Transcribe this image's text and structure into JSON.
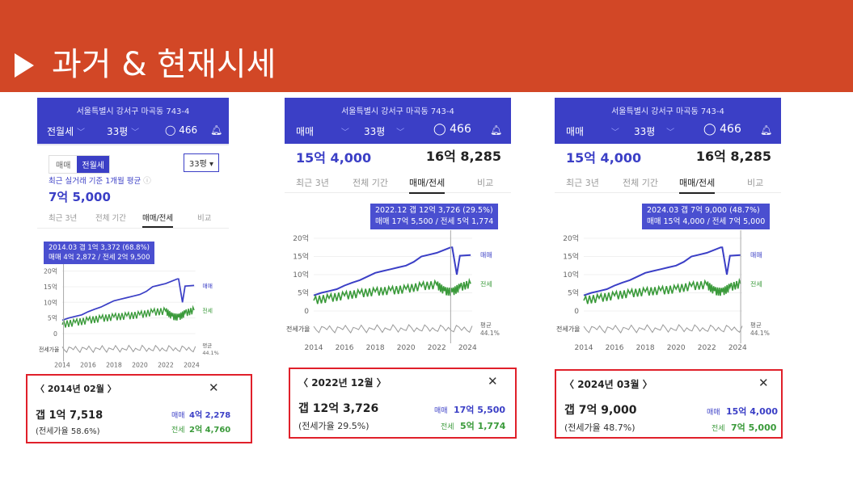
{
  "slide": {
    "title": "과거 & 현재시세"
  },
  "panels": [
    {
      "address": "서울특별시 강서구 마곡동 743-4",
      "deal_type": "전월세",
      "size": "33평",
      "comments": "466",
      "toggle": [
        "매매",
        "전월세"
      ],
      "size_select": "33평",
      "recent_caption": "최근 실거래 기준 1개월 평균",
      "price_main": "7억 5,000",
      "tabs": [
        "최근 3년",
        "전체 기간",
        "매매/전세",
        "비교"
      ],
      "tooltip": [
        "2014.03 갭 1억 3,372 (68.8%)",
        "매매 4억 2,872 / 전세 2억 9,500"
      ],
      "info": {
        "period": "2014년 02월",
        "gap": "갭 1억 7,518",
        "ratio": "(전세가율 58.6%)",
        "sale_label": "매매",
        "sale_value": "4억 2,278",
        "jeonse_label": "전세",
        "jeonse_value": "2억 4,760"
      }
    },
    {
      "address": "서울특별시 강서구 마곡동 743-4",
      "deal_type": "매매",
      "size": "33평",
      "comments": "466",
      "price_main": "15억 4,000",
      "price_right": "16억 8,285",
      "tabs": [
        "최근 3년",
        "전체 기간",
        "매매/전세",
        "비교"
      ],
      "tooltip": [
        "2022.12 갭 12억 3,726 (29.5%)",
        "매매 17억 5,500 / 전세 5억 1,774"
      ],
      "info": {
        "period": "2022년 12월",
        "gap": "갭 12억 3,726",
        "ratio": "(전세가율 29.5%)",
        "sale_label": "매매",
        "sale_value": "17억 5,500",
        "jeonse_label": "전세",
        "jeonse_value": "5억 1,774"
      }
    },
    {
      "address": "서울특별시 강서구 마곡동 743-4",
      "deal_type": "매매",
      "size": "33평",
      "comments": "466",
      "price_main": "15억 4,000",
      "price_right": "16억 8,285",
      "tabs": [
        "최근 3년",
        "전체 기간",
        "매매/전세",
        "비교"
      ],
      "tooltip": [
        "2024.03 갭 7억 9,000 (48.7%)",
        "매매 15억 4,000 / 전세 7억 5,000"
      ],
      "info": {
        "period": "2024년 03월",
        "gap": "갭 7억 9,000",
        "ratio": "(전세가율 48.7%)",
        "sale_label": "매매",
        "sale_value": "15억 4,000",
        "jeonse_label": "전세",
        "jeonse_value": "7억 5,000"
      }
    }
  ],
  "chart_data": [
    {
      "type": "line",
      "x_ticks": [
        "2014",
        "2016",
        "2018",
        "2020",
        "2022",
        "2024"
      ],
      "y_ticks": [
        "20억",
        "15억",
        "10억",
        "5억",
        "0"
      ],
      "ylim": [
        0,
        20
      ],
      "series": [
        {
          "name": "매매",
          "color": "#3b3fc6",
          "x": [
            2014.0,
            2014.5,
            2015.0,
            2015.5,
            2016.0,
            2016.5,
            2017.0,
            2017.5,
            2018.0,
            2018.5,
            2019.0,
            2019.5,
            2020.0,
            2020.5,
            2021.0,
            2021.5,
            2022.0,
            2022.9,
            2023.0,
            2023.3,
            2023.5,
            2024.2
          ],
          "y": [
            4.3,
            5.0,
            5.5,
            6.0,
            7.0,
            7.8,
            8.5,
            9.5,
            10.5,
            11.0,
            11.5,
            12.0,
            12.5,
            13.5,
            15.0,
            15.5,
            16.0,
            17.5,
            17.5,
            10.0,
            15.2,
            15.4
          ]
        },
        {
          "name": "전세",
          "color": "#3a9a3a",
          "x": [
            2014.0,
            2015.0,
            2016.0,
            2017.0,
            2018.0,
            2019.0,
            2020.0,
            2021.0,
            2022.0,
            2022.5,
            2023.0,
            2023.5,
            2024.2
          ],
          "y": [
            2.9,
            3.5,
            4.2,
            4.8,
            5.3,
            5.6,
            6.0,
            6.8,
            7.2,
            5.5,
            5.2,
            6.5,
            7.5
          ]
        }
      ],
      "ratio_label": "전세가율",
      "avg_label": [
        "평균",
        "44.1%"
      ]
    }
  ]
}
